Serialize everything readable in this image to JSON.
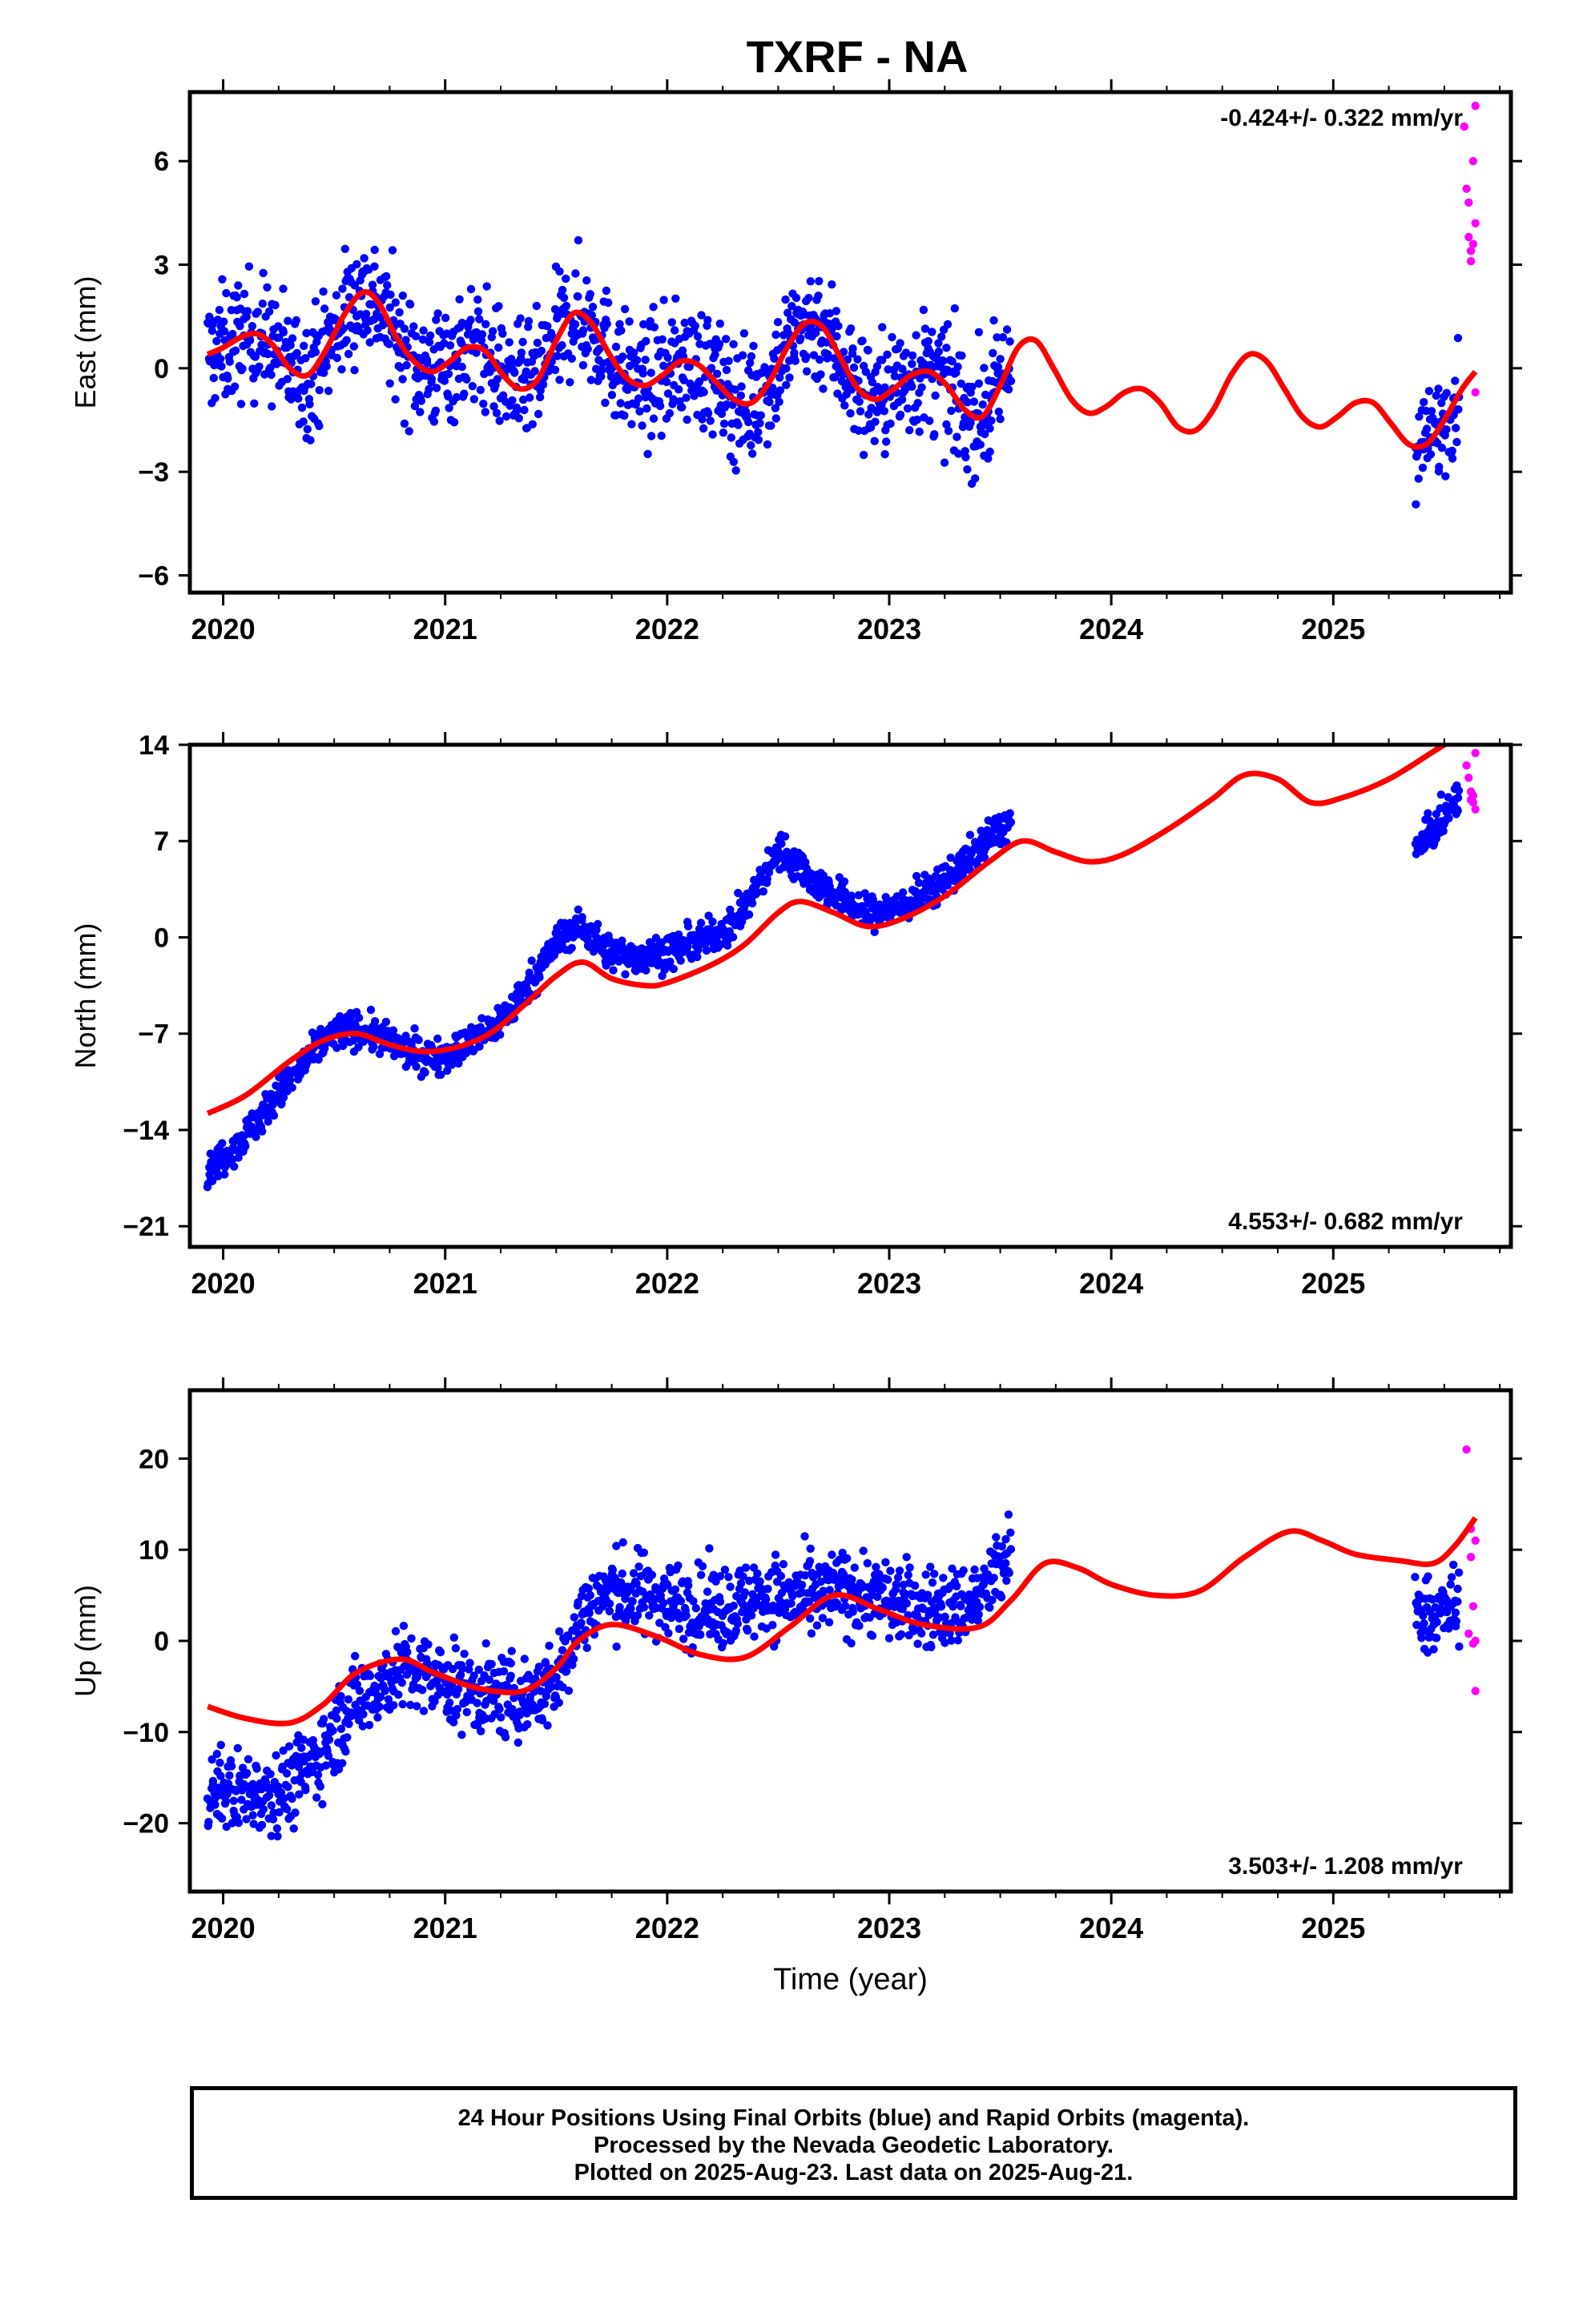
{
  "title": "TXRF - NA",
  "footer": [
    "24 Hour Positions Using Final Orbits (blue) and Rapid Orbits (magenta).",
    "Processed by the Nevada Geodetic Laboratory.",
    "Plotted on 2025-Aug-23. Last data on 2025-Aug-21."
  ],
  "colors": {
    "final": "#0000ff",
    "rapid": "#ff00ff",
    "model": "#ff0000"
  },
  "chart_data": [
    {
      "type": "scatter",
      "ylabel": "East (mm)",
      "xlabel": "",
      "xlim": [
        2019.85,
        2025.8
      ],
      "ylim": [
        -6.5,
        8.0
      ],
      "yticks": [
        -6,
        -3,
        0,
        3,
        6
      ],
      "ytick_labels": [
        "−6",
        "−3",
        "0",
        "3",
        "6"
      ],
      "xticks": [
        2020,
        2021,
        2022,
        2023,
        2024,
        2025
      ],
      "rate_label": "-0.424+/- 0.322 mm/yr",
      "rate_position": "top-right",
      "model": {
        "name": "model",
        "x": [
          2019.93,
          2020.0,
          2020.08,
          2020.15,
          2020.22,
          2020.3,
          2020.38,
          2020.46,
          2020.55,
          2020.63,
          2020.7,
          2020.78,
          2020.86,
          2020.94,
          2021.02,
          2021.1,
          2021.18,
          2021.26,
          2021.34,
          2021.42,
          2021.5,
          2021.58,
          2021.66,
          2021.74,
          2021.82,
          2021.9,
          2021.98,
          2022.06,
          2022.14,
          2022.22,
          2022.3,
          2022.38,
          2022.46,
          2022.54,
          2022.62,
          2022.7,
          2022.78,
          2022.86,
          2022.94,
          2023.02,
          2023.1,
          2023.18,
          2023.26,
          2023.34,
          2023.42,
          2023.5,
          2023.58,
          2023.66,
          2023.74,
          2023.82,
          2023.9,
          2023.98,
          2024.06,
          2024.14,
          2024.22,
          2024.3,
          2024.38,
          2024.46,
          2024.54,
          2024.62,
          2024.7,
          2024.78,
          2024.86,
          2024.94,
          2025.02,
          2025.1,
          2025.18,
          2025.26,
          2025.34,
          2025.42,
          2025.5,
          2025.58,
          2025.64
        ],
        "y": [
          0.4,
          0.6,
          0.9,
          1.0,
          0.7,
          0.0,
          -0.2,
          0.5,
          1.6,
          2.2,
          1.9,
          0.9,
          0.2,
          -0.1,
          0.2,
          0.6,
          0.5,
          -0.2,
          -0.6,
          -0.3,
          0.8,
          1.6,
          1.3,
          0.4,
          -0.3,
          -0.5,
          -0.2,
          0.2,
          0.1,
          -0.4,
          -0.9,
          -1.0,
          -0.4,
          0.6,
          1.3,
          1.2,
          0.3,
          -0.6,
          -0.9,
          -0.6,
          -0.2,
          -0.1,
          -0.5,
          -1.2,
          -1.4,
          -0.5,
          0.6,
          0.8,
          0.0,
          -0.9,
          -1.3,
          -1.1,
          -0.7,
          -0.6,
          -1.0,
          -1.7,
          -1.8,
          -1.2,
          -0.2,
          0.4,
          0.2,
          -0.6,
          -1.4,
          -1.7,
          -1.4,
          -1.0,
          -1.0,
          -1.6,
          -2.2,
          -2.2,
          -1.5,
          -0.6,
          -0.1
        ]
      },
      "final_segments": [
        {
          "x0": 2019.93,
          "x1": 2023.55,
          "noise": 1.25
        },
        {
          "x0": 2025.37,
          "x1": 2025.57,
          "noise": 1.0
        }
      ],
      "rapid": {
        "x": [
          2025.59,
          2025.6,
          2025.61,
          2025.61,
          2025.62,
          2025.62,
          2025.63,
          2025.63,
          2025.64,
          2025.64,
          2025.64
        ],
        "y": [
          7.0,
          5.2,
          4.8,
          3.8,
          3.4,
          3.1,
          3.6,
          6.0,
          7.6,
          4.2,
          -0.7
        ]
      }
    },
    {
      "type": "scatter",
      "ylabel": "North (mm)",
      "xlabel": "",
      "xlim": [
        2019.85,
        2025.8
      ],
      "ylim": [
        -22.5,
        14.0
      ],
      "yticks": [
        -21,
        -14,
        -7,
        0,
        7,
        14
      ],
      "ytick_labels": [
        "−21",
        "−14",
        "−7",
        "0",
        "7",
        "14"
      ],
      "xticks": [
        2020,
        2021,
        2022,
        2023,
        2024,
        2025
      ],
      "rate_label": "4.553+/- 0.682 mm/yr",
      "rate_position": "bottom-right",
      "model": {
        "name": "model",
        "x": [
          2019.93,
          2020.1,
          2020.3,
          2020.45,
          2020.6,
          2020.75,
          2020.9,
          2021.05,
          2021.2,
          2021.35,
          2021.5,
          2021.62,
          2021.75,
          2021.9,
          2022.0,
          2022.2,
          2022.35,
          2022.5,
          2022.6,
          2022.75,
          2022.9,
          2023.05,
          2023.25,
          2023.45,
          2023.6,
          2023.75,
          2023.9,
          2024.05,
          2024.25,
          2024.45,
          2024.6,
          2024.75,
          2024.9,
          2025.05,
          2025.25,
          2025.45,
          2025.55
        ],
        "y": [
          -12.8,
          -11.5,
          -9.0,
          -7.5,
          -7.0,
          -7.8,
          -8.3,
          -8.0,
          -7.0,
          -5.0,
          -2.8,
          -1.8,
          -3.0,
          -3.5,
          -3.3,
          -2.0,
          -0.5,
          1.8,
          2.6,
          1.8,
          0.8,
          1.3,
          3.0,
          5.5,
          7.0,
          6.2,
          5.5,
          6.0,
          7.8,
          10.0,
          11.8,
          11.5,
          9.8,
          10.2,
          11.5,
          13.5,
          14.5
        ]
      },
      "final_segments": [
        {
          "x0": 2019.93,
          "x1": 2023.55,
          "offset": [
            [
              2019.93,
              -4.2
            ],
            [
              2020.3,
              -1.4
            ],
            [
              2020.5,
              0.4
            ],
            [
              2020.7,
              0.3
            ],
            [
              2020.95,
              -0.5
            ],
            [
              2021.3,
              0.5
            ],
            [
              2021.55,
              2.8
            ],
            [
              2021.75,
              1.8
            ],
            [
              2021.95,
              2.2
            ],
            [
              2022.3,
              2.0
            ],
            [
              2022.5,
              4.5
            ],
            [
              2022.65,
              1.8
            ],
            [
              2022.9,
              0.9
            ],
            [
              2023.2,
              1.0
            ],
            [
              2023.55,
              2.0
            ]
          ],
          "noise": 0.9
        },
        {
          "x0": 2025.37,
          "x1": 2025.57,
          "offset": [
            [
              2025.37,
              -6.5
            ],
            [
              2025.57,
              -4.5
            ]
          ],
          "noise": 0.9
        }
      ],
      "rapid": {
        "x": [
          2025.6,
          2025.61,
          2025.62,
          2025.62,
          2025.63,
          2025.63,
          2025.64,
          2025.64
        ],
        "y": [
          12.5,
          11.6,
          10.6,
          10.0,
          9.8,
          10.3,
          13.4,
          9.3
        ]
      }
    },
    {
      "type": "scatter",
      "ylabel": "Up (mm)",
      "xlabel": "Time (year)",
      "xlim": [
        2019.85,
        2025.8
      ],
      "ylim": [
        -27.5,
        27.5
      ],
      "yticks": [
        -20,
        -10,
        0,
        10,
        20
      ],
      "ytick_labels": [
        "−20",
        "−10",
        "0",
        "10",
        "20"
      ],
      "xticks": [
        2020,
        2021,
        2022,
        2023,
        2024,
        2025
      ],
      "rate_label": "3.503+/- 1.208 mm/yr",
      "rate_position": "bottom-right",
      "model": {
        "name": "model",
        "x": [
          2019.93,
          2020.1,
          2020.3,
          2020.45,
          2020.6,
          2020.8,
          2020.95,
          2021.15,
          2021.35,
          2021.5,
          2021.6,
          2021.75,
          2021.95,
          2022.15,
          2022.35,
          2022.55,
          2022.75,
          2022.95,
          2023.15,
          2023.4,
          2023.55,
          2023.7,
          2023.85,
          2024.0,
          2024.2,
          2024.4,
          2024.6,
          2024.8,
          2024.95,
          2025.1,
          2025.3,
          2025.45,
          2025.55,
          2025.64
        ],
        "y": [
          -7.2,
          -8.5,
          -9.0,
          -7.0,
          -3.5,
          -2.0,
          -3.5,
          -5.2,
          -5.5,
          -3.0,
          0.0,
          1.8,
          0.5,
          -1.5,
          -1.8,
          1.5,
          5.0,
          3.5,
          1.8,
          1.5,
          4.5,
          8.5,
          8.0,
          6.2,
          5.0,
          5.5,
          9.2,
          12.0,
          11.0,
          9.5,
          8.8,
          8.5,
          10.5,
          13.5
        ]
      },
      "final_segments": [
        {
          "x0": 2019.93,
          "x1": 2023.55,
          "offset": [
            [
              2019.93,
              -9.0
            ],
            [
              2020.3,
              -7.0
            ],
            [
              2020.55,
              -3.5
            ],
            [
              2020.8,
              -1.0
            ],
            [
              2021.2,
              -0.5
            ],
            [
              2021.5,
              -1.5
            ],
            [
              2021.65,
              3.5
            ],
            [
              2022.0,
              4.5
            ],
            [
              2022.4,
              6.0
            ],
            [
              2022.7,
              0.5
            ],
            [
              2023.0,
              1.5
            ],
            [
              2023.3,
              2.0
            ],
            [
              2023.55,
              5.0
            ]
          ],
          "noise": 3.2
        },
        {
          "x0": 2025.37,
          "x1": 2025.57,
          "offset": [
            [
              2025.37,
              -5.0
            ],
            [
              2025.57,
              -7.0
            ]
          ],
          "noise": 3.0
        }
      ],
      "rapid": {
        "x": [
          2025.6,
          2025.61,
          2025.62,
          2025.62,
          2025.63,
          2025.63,
          2025.64,
          2025.64,
          2025.64
        ],
        "y": [
          21.0,
          0.8,
          9.2,
          12.3,
          3.8,
          -0.3,
          11.0,
          0.0,
          -5.5
        ]
      }
    }
  ]
}
